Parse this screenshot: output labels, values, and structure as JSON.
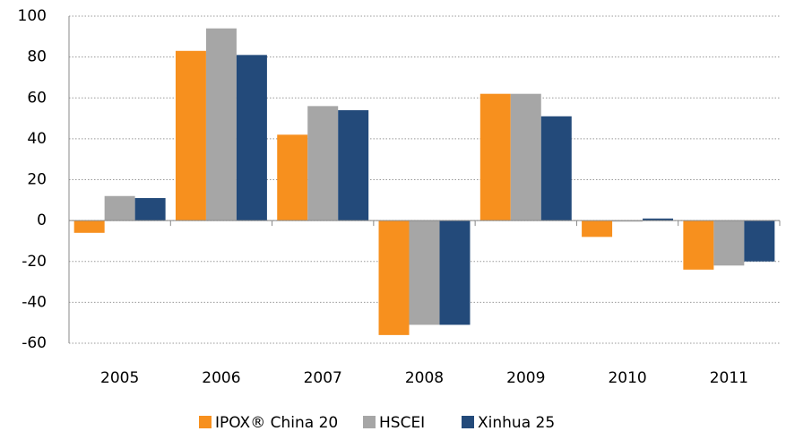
{
  "chart_data": {
    "type": "bar",
    "categories": [
      "2005",
      "2006",
      "2007",
      "2008",
      "2009",
      "2010",
      "2011"
    ],
    "series": [
      {
        "name": "IPOX® China 20",
        "color": "#f7901e",
        "values": [
          -6,
          83,
          42,
          -56,
          62,
          -8,
          -24
        ]
      },
      {
        "name": "HSCEI",
        "color": "#a6a6a6",
        "values": [
          12,
          94,
          56,
          -51,
          62,
          -0.5,
          -22
        ]
      },
      {
        "name": "Xinhua 25",
        "color": "#234a7a",
        "values": [
          11,
          81,
          54,
          -51,
          51,
          1,
          -20
        ]
      }
    ],
    "ylim": [
      -60,
      100
    ],
    "yticks": [
      -60,
      -40,
      -20,
      0,
      20,
      40,
      60,
      80,
      100
    ],
    "grid": true,
    "legend": "bottom"
  }
}
